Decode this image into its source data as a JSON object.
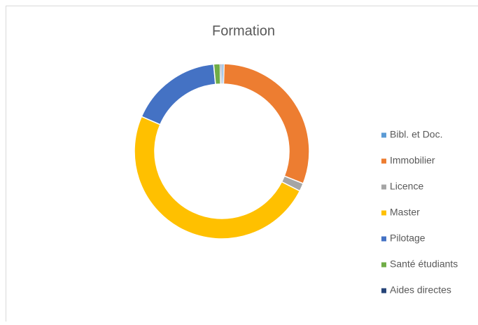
{
  "chart_data": {
    "type": "donut",
    "title": "Formation",
    "categories": [
      "Bibl. et Doc.",
      "Immobilier",
      "Licence",
      "Master",
      "Pilotage",
      "Santé étudiants",
      "Aides directes"
    ],
    "values": [
      0.4,
      30.6,
      1.5,
      49,
      17,
      1.2,
      0.3
    ],
    "colors": [
      "#5b9bd5",
      "#ed7d31",
      "#a5a5a5",
      "#ffc000",
      "#4472c4",
      "#70ad47",
      "#264478"
    ],
    "legend": "right"
  }
}
